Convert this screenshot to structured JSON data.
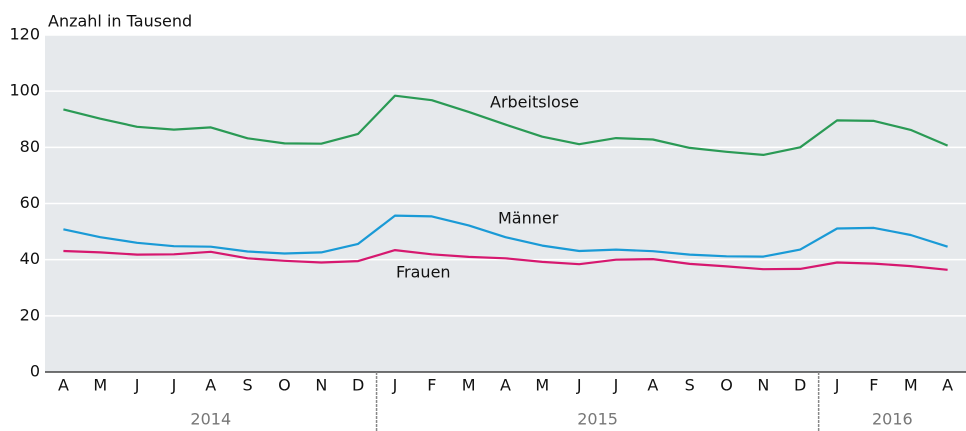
{
  "chart_data": {
    "type": "line",
    "ylabel": "Anzahl in Tausend",
    "categories": [
      "A",
      "M",
      "J",
      "J",
      "A",
      "S",
      "O",
      "N",
      "D",
      "J",
      "F",
      "M",
      "A",
      "M",
      "J",
      "J",
      "A",
      "S",
      "O",
      "N",
      "D",
      "J",
      "F",
      "M",
      "A"
    ],
    "year_groups": [
      {
        "label": "2014",
        "count": 9
      },
      {
        "label": "2015",
        "count": 12
      },
      {
        "label": "2016",
        "count": 4
      }
    ],
    "series": [
      {
        "name": "Arbeitslose",
        "color": "#2a9a55",
        "values": [
          93.5,
          90.2,
          87.3,
          86.3,
          87.1,
          83.2,
          81.4,
          81.3,
          84.8,
          98.4,
          96.8,
          92.6,
          88.1,
          83.8,
          81.1,
          83.3,
          82.8,
          79.8,
          78.4,
          77.3,
          80.0,
          89.6,
          89.4,
          86.2,
          80.6
        ]
      },
      {
        "name": "Männer",
        "color": "#1a9ad6",
        "values": [
          50.8,
          48.0,
          46.0,
          44.8,
          44.6,
          42.9,
          42.2,
          42.6,
          45.6,
          55.7,
          55.4,
          52.2,
          48.0,
          45.0,
          43.1,
          43.6,
          43.0,
          41.8,
          41.2,
          41.1,
          43.6,
          51.1,
          51.3,
          48.8,
          44.6
        ]
      },
      {
        "name": "Frauen",
        "color": "#d6186f",
        "values": [
          43.1,
          42.6,
          41.8,
          41.9,
          42.8,
          40.5,
          39.6,
          39.0,
          39.5,
          43.4,
          41.9,
          41.0,
          40.5,
          39.2,
          38.4,
          40.0,
          40.2,
          38.5,
          37.6,
          36.6,
          36.7,
          39.0,
          38.6,
          37.7,
          36.4
        ]
      }
    ],
    "ylim": [
      0,
      120
    ],
    "yticks": [
      0,
      20,
      40,
      60,
      80,
      100,
      120
    ],
    "grid": true
  }
}
